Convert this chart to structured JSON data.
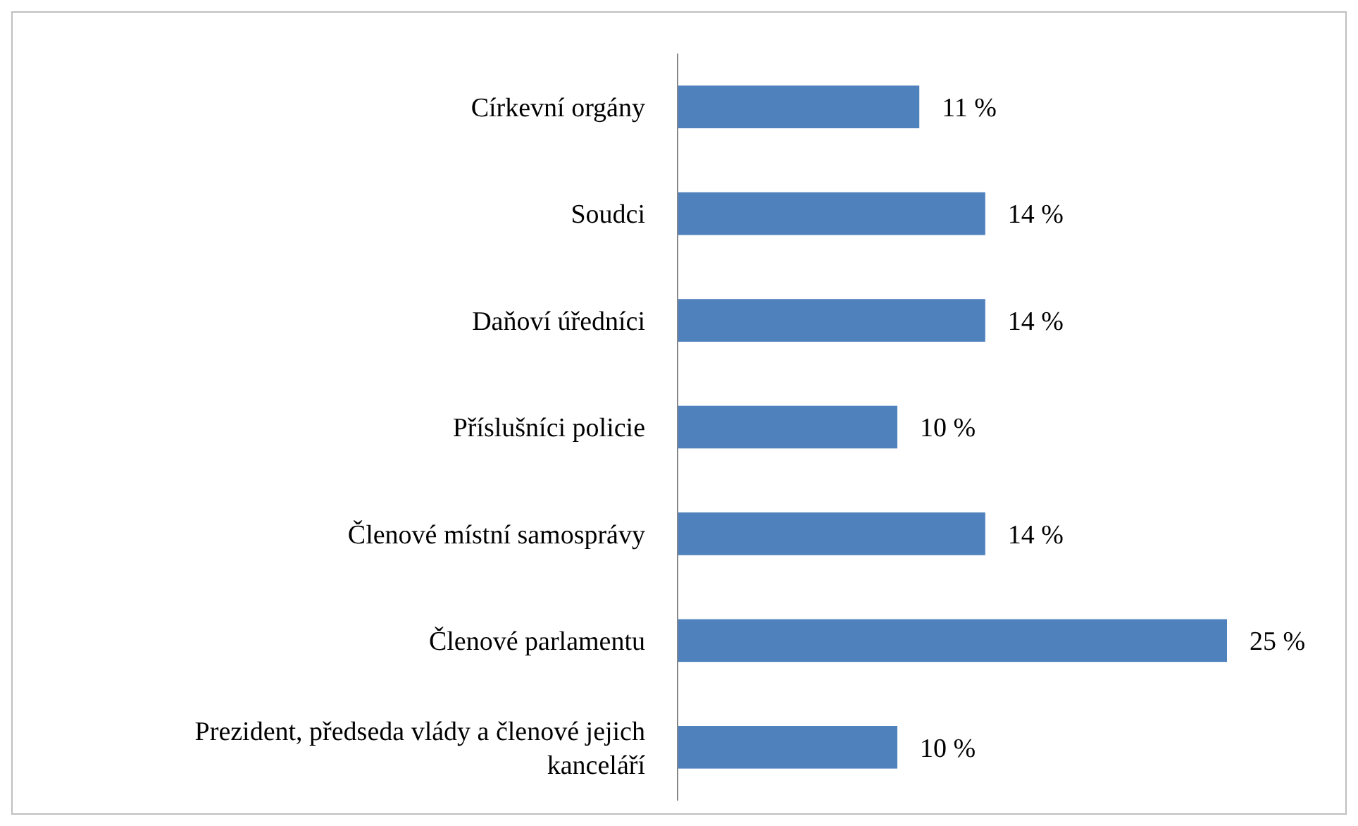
{
  "chart_data": {
    "type": "bar",
    "orientation": "horizontal",
    "categories": [
      "Církevní orgány",
      "Soudci",
      "Daňoví úředníci",
      "Příslušníci policie",
      "Členové místní samosprávy",
      "Členové parlamentu",
      "Prezident, předseda vlády a členové jejich kanceláří"
    ],
    "values": [
      11,
      14,
      14,
      10,
      14,
      25,
      10
    ],
    "value_labels": [
      "11 %",
      "14 %",
      "14 %",
      "10 %",
      "14 %",
      "25 %",
      "10 %"
    ],
    "color": "#4f81bd"
  }
}
